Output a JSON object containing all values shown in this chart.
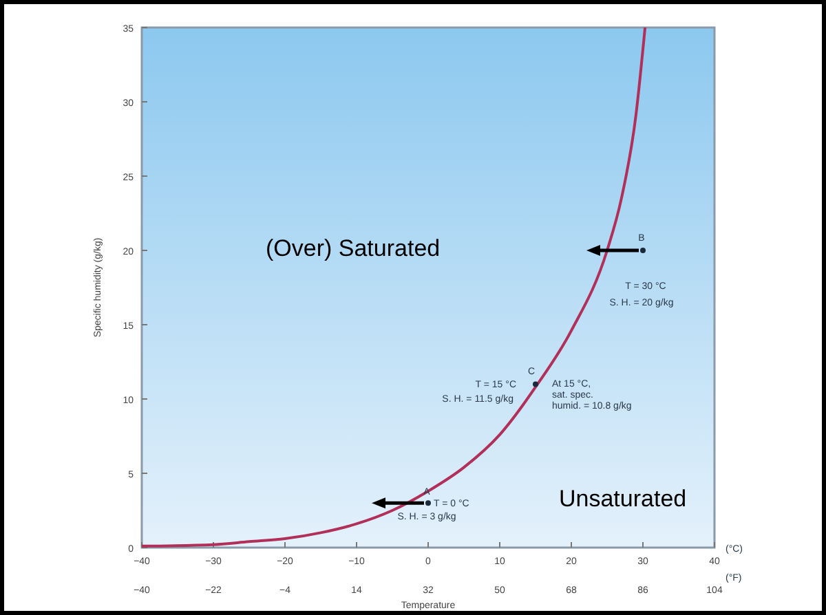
{
  "chart_data": {
    "type": "line",
    "xlabel": "Temperature",
    "ylabel": "Specific humidity (g/kg)",
    "xlim": [
      -40,
      40
    ],
    "xticks": [
      -40,
      -30,
      -20,
      -10,
      0,
      10,
      20,
      30,
      40
    ],
    "x2lim": [
      -40,
      104
    ],
    "x2ticks": [
      -40,
      -22,
      -4,
      14,
      32,
      50,
      68,
      86,
      104
    ],
    "ylim": [
      0,
      35
    ],
    "yticks": [
      0,
      5,
      10,
      15,
      20,
      25,
      30,
      35
    ],
    "series": [
      {
        "type": "line",
        "color": "#b0305a",
        "x": [
          -40,
          -30,
          -25,
          -20,
          -15,
          -10,
          -5,
          0,
          5,
          10,
          15,
          20,
          25,
          27,
          29,
          30.3
        ],
        "values": [
          0.1,
          0.2,
          0.4,
          0.6,
          1,
          1.6,
          2.5,
          3.8,
          5.4,
          7.6,
          10.8,
          14.6,
          20,
          23.5,
          29,
          35
        ]
      },
      {
        "type": "scatter",
        "color": "#1a2a3a",
        "x": [
          0,
          15,
          30
        ],
        "values": [
          3,
          11,
          20
        ],
        "marker": "circle"
      }
    ],
    "annotations": [
      "(Over) Saturated",
      "Unsaturated",
      "(°C)",
      "(°F)",
      "A",
      "T = 0 °C",
      "S. H. = 3 g/kg",
      "C",
      "T = 15 °C",
      "S. H. = 11.5 g/kg",
      "At 15 °C,",
      "sat. spec.",
      "humid. = 10.8 g/kg",
      "B",
      "T = 30 °C",
      "S. H. = 20 g/kg"
    ],
    "grid": false
  }
}
